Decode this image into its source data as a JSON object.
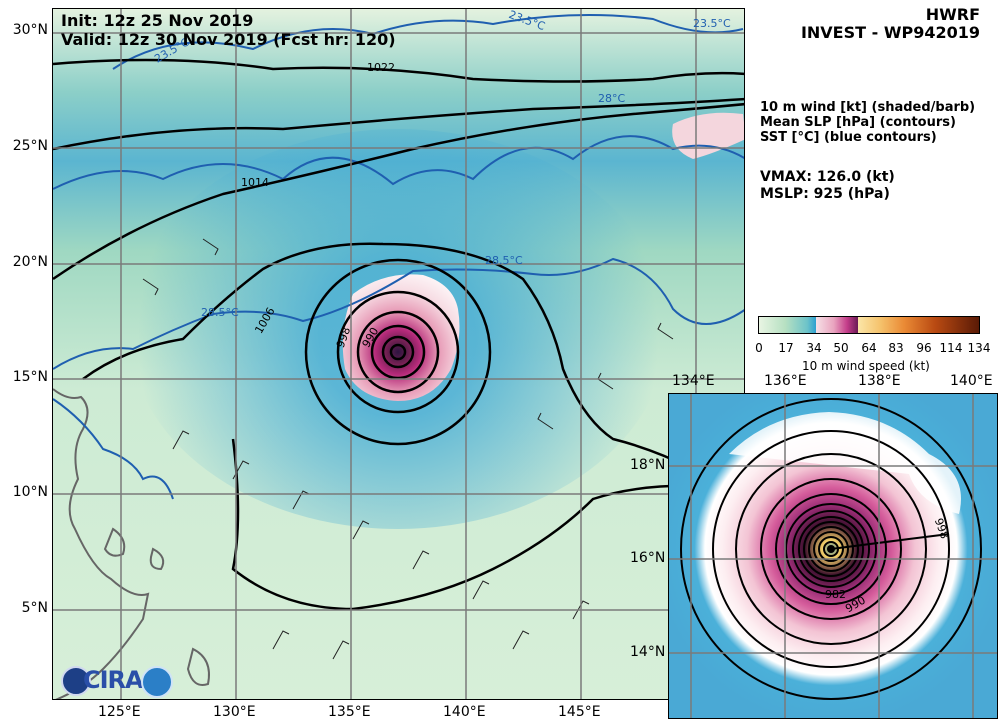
{
  "header": {
    "init_label": "Init:   12z 25 Nov 2019",
    "valid_label": "Valid: 12z 30 Nov 2019 (Fcst hr: 120)",
    "model": "HWRF",
    "storm": "INVEST - WP942019"
  },
  "legend": {
    "line1": "10 m wind [kt] (shaded/barb)",
    "line2": "Mean SLP [hPa] (contours)",
    "line3": "SST [°C] (blue contours)"
  },
  "stats": {
    "vmax": "VMAX: 126.0 (kt)",
    "mslp": "MSLP:  925 (hPa)"
  },
  "colorbar": {
    "ticks": [
      "0",
      "17",
      "34",
      "50",
      "64",
      "83",
      "96",
      "114",
      "134"
    ],
    "label": "10 m wind speed (kt)"
  },
  "main_axes": {
    "lon_ticks": [
      "125°E",
      "130°E",
      "135°E",
      "140°E",
      "145°E"
    ],
    "lat_ticks": [
      "30°N",
      "25°N",
      "20°N",
      "15°N",
      "10°N",
      "5°N"
    ]
  },
  "inset_axes": {
    "lon_ticks": [
      "134°E",
      "136°E",
      "138°E",
      "140°E"
    ],
    "lat_ticks": [
      "18°N",
      "16°N",
      "14°N"
    ]
  },
  "contours": {
    "slp_labels": [
      "1022",
      "1014",
      "1006",
      "998",
      "990"
    ],
    "sst_labels": [
      "23.5°C",
      "23.5°C",
      "28°C",
      "28.5°C",
      "28.5°C",
      "23.5°C"
    ],
    "inset_labels": [
      "998",
      "990",
      "982"
    ]
  },
  "logos": {
    "cira": "CIRA"
  },
  "colors": {
    "slp_contour": "#000000",
    "sst_contour": "#1f5fb0",
    "land": "#666666",
    "grid": "#7a7a7a"
  }
}
